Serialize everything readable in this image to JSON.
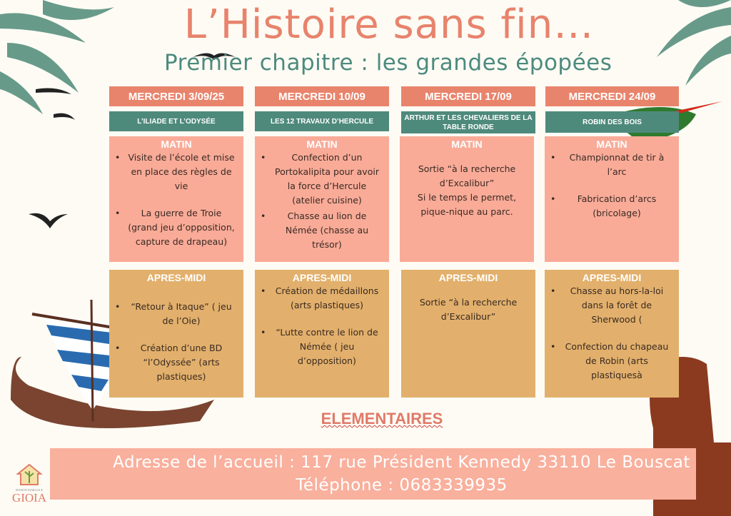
{
  "header": {
    "title": "L’Histoire sans fin…",
    "subtitle": "Premier chapitre : les grandes épopées"
  },
  "colors": {
    "title": "#e8836c",
    "subtitle": "#4d8a7e",
    "date_header": "#e9846c",
    "theme": "#4e8a7c",
    "matin": "#f9ab98",
    "apres_midi": "#e2b06c",
    "footer_band": "#f9b09d"
  },
  "columns": [
    {
      "date": "MERCREDI 3/09/25",
      "theme": "L’ILIADE ET L’ODYSÉE",
      "matin": {
        "label": "MATIN",
        "items": [
          "Visite de l’école et mise en place des règles de vie",
          "La guerre de Troie (grand jeu d’opposition, capture de drapeau)"
        ]
      },
      "apres": {
        "label": "APRES-MIDI",
        "items": [
          "“Retour à Itaque” ( jeu de l’Oie)",
          "Création d’une BD “l’Odyssée” (arts plastiques)"
        ]
      }
    },
    {
      "date": "MERCREDI 10/09",
      "theme": "LES 12 TRAVAUX D’HERCULE",
      "matin": {
        "label": "MATIN",
        "items": [
          "Confection d’un Portokalipita pour avoir la force d’Hercule (atelier cuisine)",
          "Chasse au lion de Némée (chasse au trésor)"
        ]
      },
      "apres": {
        "label": "APRES-MIDI",
        "items": [
          "Création de médaillons (arts plastiques)",
          "“Lutte contre le lion de Némée ( jeu d’opposition)"
        ]
      }
    },
    {
      "date": "MERCREDI 17/09",
      "theme": "ARTHUR ET LES CHEVALIERS DE LA TABLE RONDE",
      "matin": {
        "label": "MATIN",
        "text": "Sortie “à la recherche d’Excalibur”\nSi le temps le permet, pique-nique au parc."
      },
      "apres": {
        "label": "APRES-MIDI",
        "text": "Sortie “à la recherche d’Excalibur”"
      }
    },
    {
      "date": "MERCREDI 24/09",
      "theme": "ROBIN DES BOIS",
      "matin": {
        "label": "MATIN",
        "items": [
          "Championnat de tir à l’arc",
          "Fabrication d’arcs (bricolage)"
        ]
      },
      "apres": {
        "label": "APRES-MIDI",
        "items": [
          "Chasse au hors-la-loi dans la forêt de Sherwood (",
          "Confection du chapeau de Robin (arts plastiquesà"
        ]
      }
    }
  ],
  "footer": {
    "level": "ELEMENTAIRES",
    "address": "Adresse de l’accueil : 117 rue Président Kennedy 33110 Le Bouscat",
    "phone": "Téléphone : 0683339935"
  },
  "logo": {
    "line1": "MAISON FAMILIALE",
    "line2": "GIOIA"
  }
}
